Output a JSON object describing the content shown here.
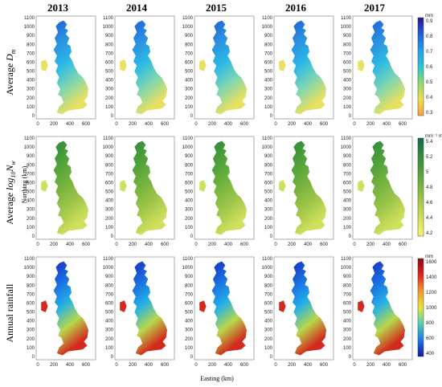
{
  "years": [
    "2013",
    "2014",
    "2015",
    "2016",
    "2017"
  ],
  "rows": [
    {
      "label_prefix": "Average ",
      "label_var": "D",
      "label_sub": "m",
      "unit": "mm",
      "colorbar_ticks": [
        "0.9",
        "0.8",
        "0.7",
        "0.6",
        "0.5",
        "0.4",
        "0.3"
      ],
      "colors": [
        "#2c0f9a",
        "#1f5fd6",
        "#1ea0e8",
        "#25c7d8",
        "#8fdc6a",
        "#f2e04a",
        "#f3a23a"
      ],
      "map_colors": [
        "#1f5fd6",
        "#2a8fe0",
        "#2bb8e6",
        "#7fd6b0",
        "#e8e060"
      ]
    },
    {
      "label_prefix": "Average ",
      "label_var": "log",
      "label_sub": "10",
      "label_var2": "N",
      "label_sub2": "w",
      "unit": "mm⁻¹ m⁻³",
      "colorbar_ticks": [
        "5.4",
        "5.2",
        "5",
        "4.8",
        "4.6",
        "4.4",
        "4.2"
      ],
      "colors": [
        "#0d6b4a",
        "#2e8b3c",
        "#4da03a",
        "#7ab83c",
        "#a9cd48",
        "#d7e35a",
        "#f8f46a"
      ],
      "map_colors": [
        "#2f8a3c",
        "#4d9f3a",
        "#72b23d",
        "#9ec54a",
        "#cfe05c"
      ]
    },
    {
      "label_prefix": "Annual rainfall",
      "unit": "mm",
      "colorbar_ticks": [
        "1600",
        "1400",
        "1200",
        "1000",
        "800",
        "600",
        "400"
      ],
      "colors": [
        "#8a0d10",
        "#e0201a",
        "#f79a2a",
        "#e8e43a",
        "#4fd0b0",
        "#1a78e8",
        "#1414a8"
      ],
      "map_colors": [
        "#1a2fbf",
        "#1a6be0",
        "#23b0e8",
        "#b8d84a",
        "#d22a1c"
      ]
    }
  ],
  "y_ticks": [
    "1100",
    "1000",
    "900",
    "800",
    "700",
    "600",
    "500",
    "400",
    "300",
    "200",
    "100",
    "0"
  ],
  "x_ticks": [
    "0",
    "200",
    "400",
    "600"
  ],
  "northing_label": "Northing (km)",
  "easting_label": "Easting (km)"
}
